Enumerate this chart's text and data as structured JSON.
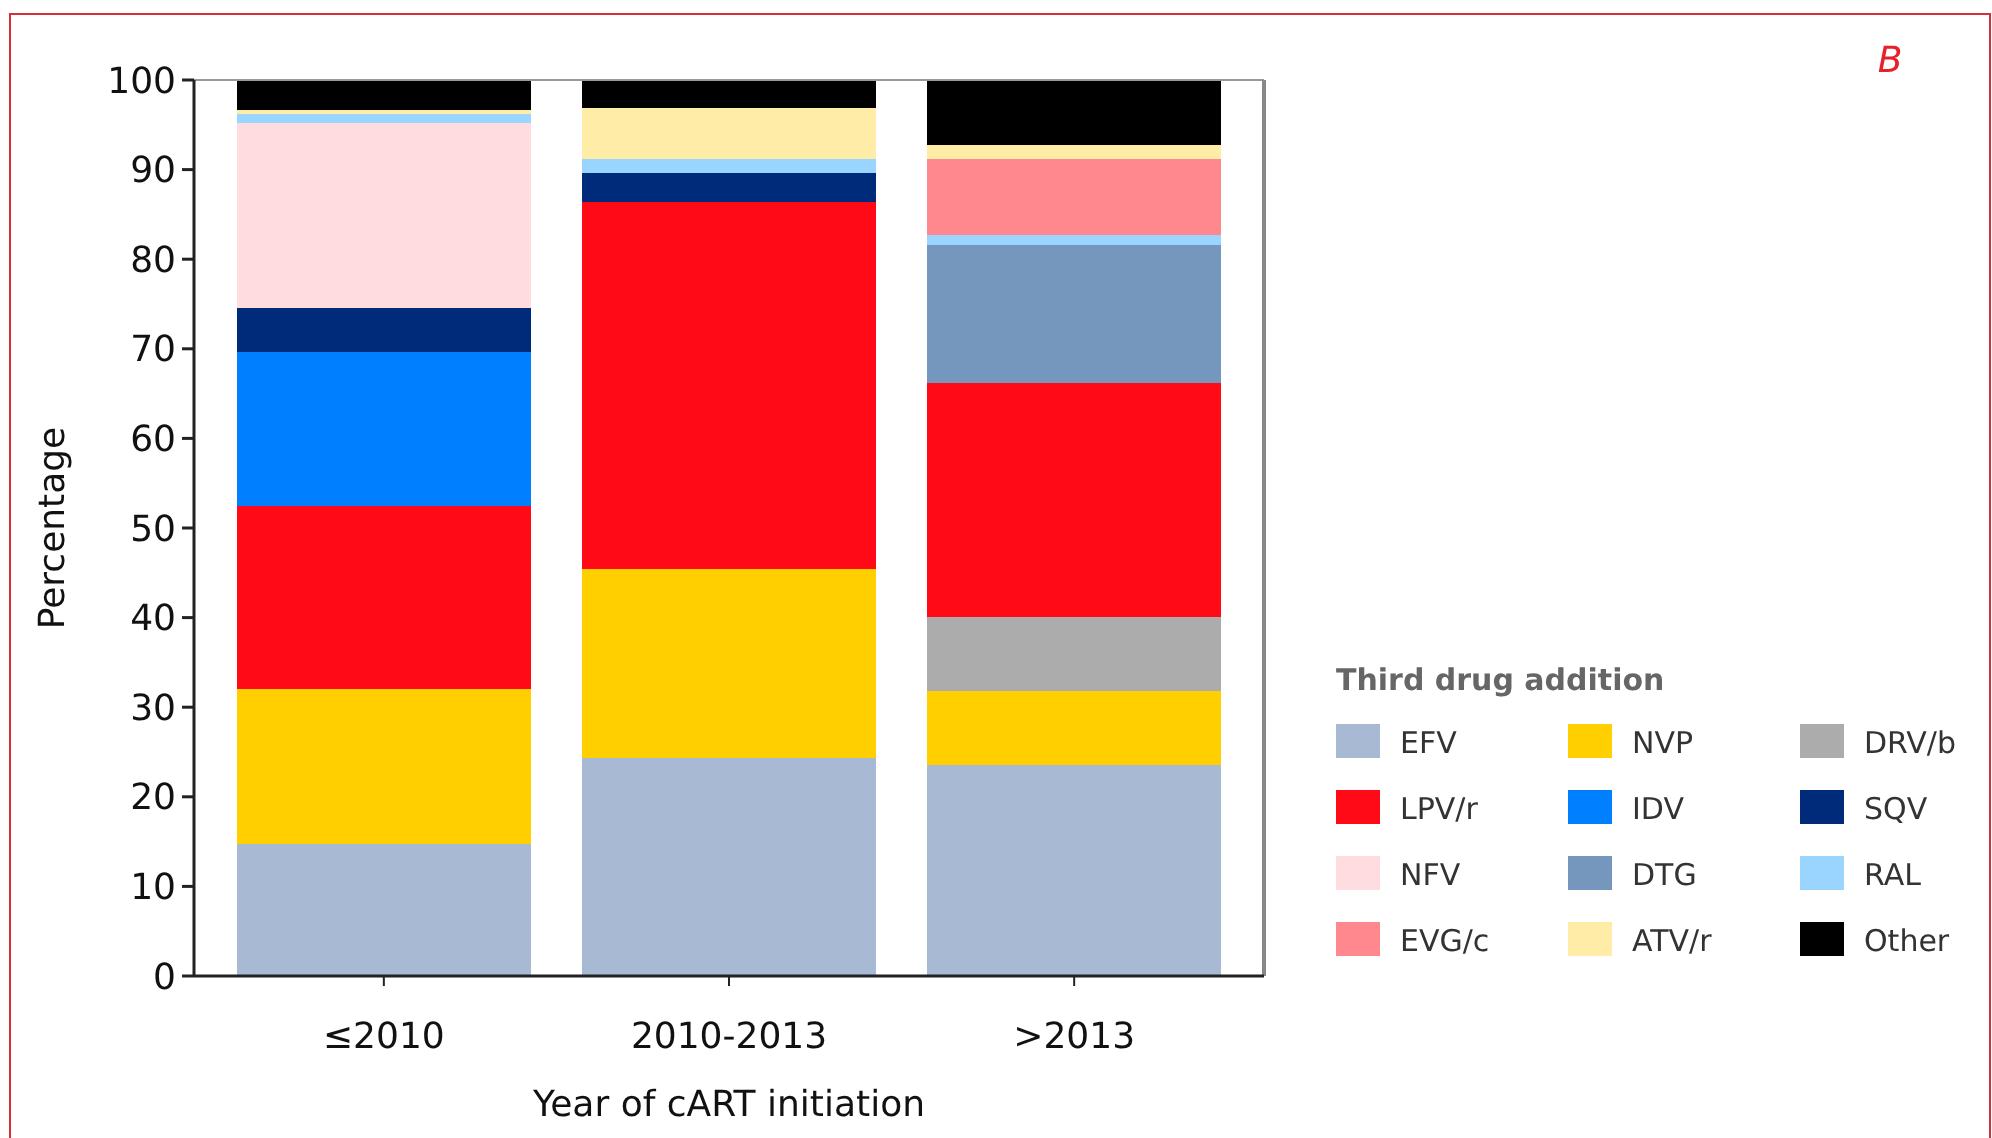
{
  "chart_data": {
    "type": "bar",
    "stacked": true,
    "xlabel": "Year of cART initiation",
    "ylabel": "Percentage",
    "legend_title": "Third drug addition",
    "legend": "right",
    "annotations": [
      "B"
    ],
    "categories": [
      "≤2010",
      "2010-2013",
      ">2013"
    ],
    "ylim": [
      0,
      100
    ],
    "yticks": [
      0,
      10,
      20,
      30,
      40,
      50,
      60,
      70,
      80,
      90,
      100
    ],
    "series": [
      {
        "name": "EFV",
        "color": "#a7b9d3",
        "values": [
          14.7,
          24.3,
          23.5
        ]
      },
      {
        "name": "NVP",
        "color": "#ffcf00",
        "values": [
          17.3,
          21.1,
          8.3
        ]
      },
      {
        "name": "DRV/b",
        "color": "#acacac",
        "values": [
          0,
          0,
          8.3
        ]
      },
      {
        "name": "LPV/r",
        "color": "#ff0a16",
        "values": [
          20.4,
          41.0,
          26.1
        ]
      },
      {
        "name": "IDV",
        "color": "#0080ff",
        "values": [
          17.2,
          0,
          0
        ]
      },
      {
        "name": "SQV",
        "color": "#002a7a",
        "values": [
          4.9,
          3.2,
          0
        ]
      },
      {
        "name": "NFV",
        "color": "#ffdce0",
        "values": [
          20.7,
          0,
          0
        ]
      },
      {
        "name": "DTG",
        "color": "#7597bd",
        "values": [
          0,
          0,
          15.4
        ]
      },
      {
        "name": "RAL",
        "color": "#99d5ff",
        "values": [
          1.0,
          1.6,
          1.1
        ]
      },
      {
        "name": "EVG/c",
        "color": "#ff888e",
        "values": [
          0,
          0,
          8.5
        ]
      },
      {
        "name": "ATV/r",
        "color": "#ffeca6",
        "values": [
          0.4,
          5.7,
          1.6
        ]
      },
      {
        "name": "Other",
        "color": "#000000",
        "values": [
          3.5,
          3.1,
          7.2
        ]
      }
    ]
  }
}
